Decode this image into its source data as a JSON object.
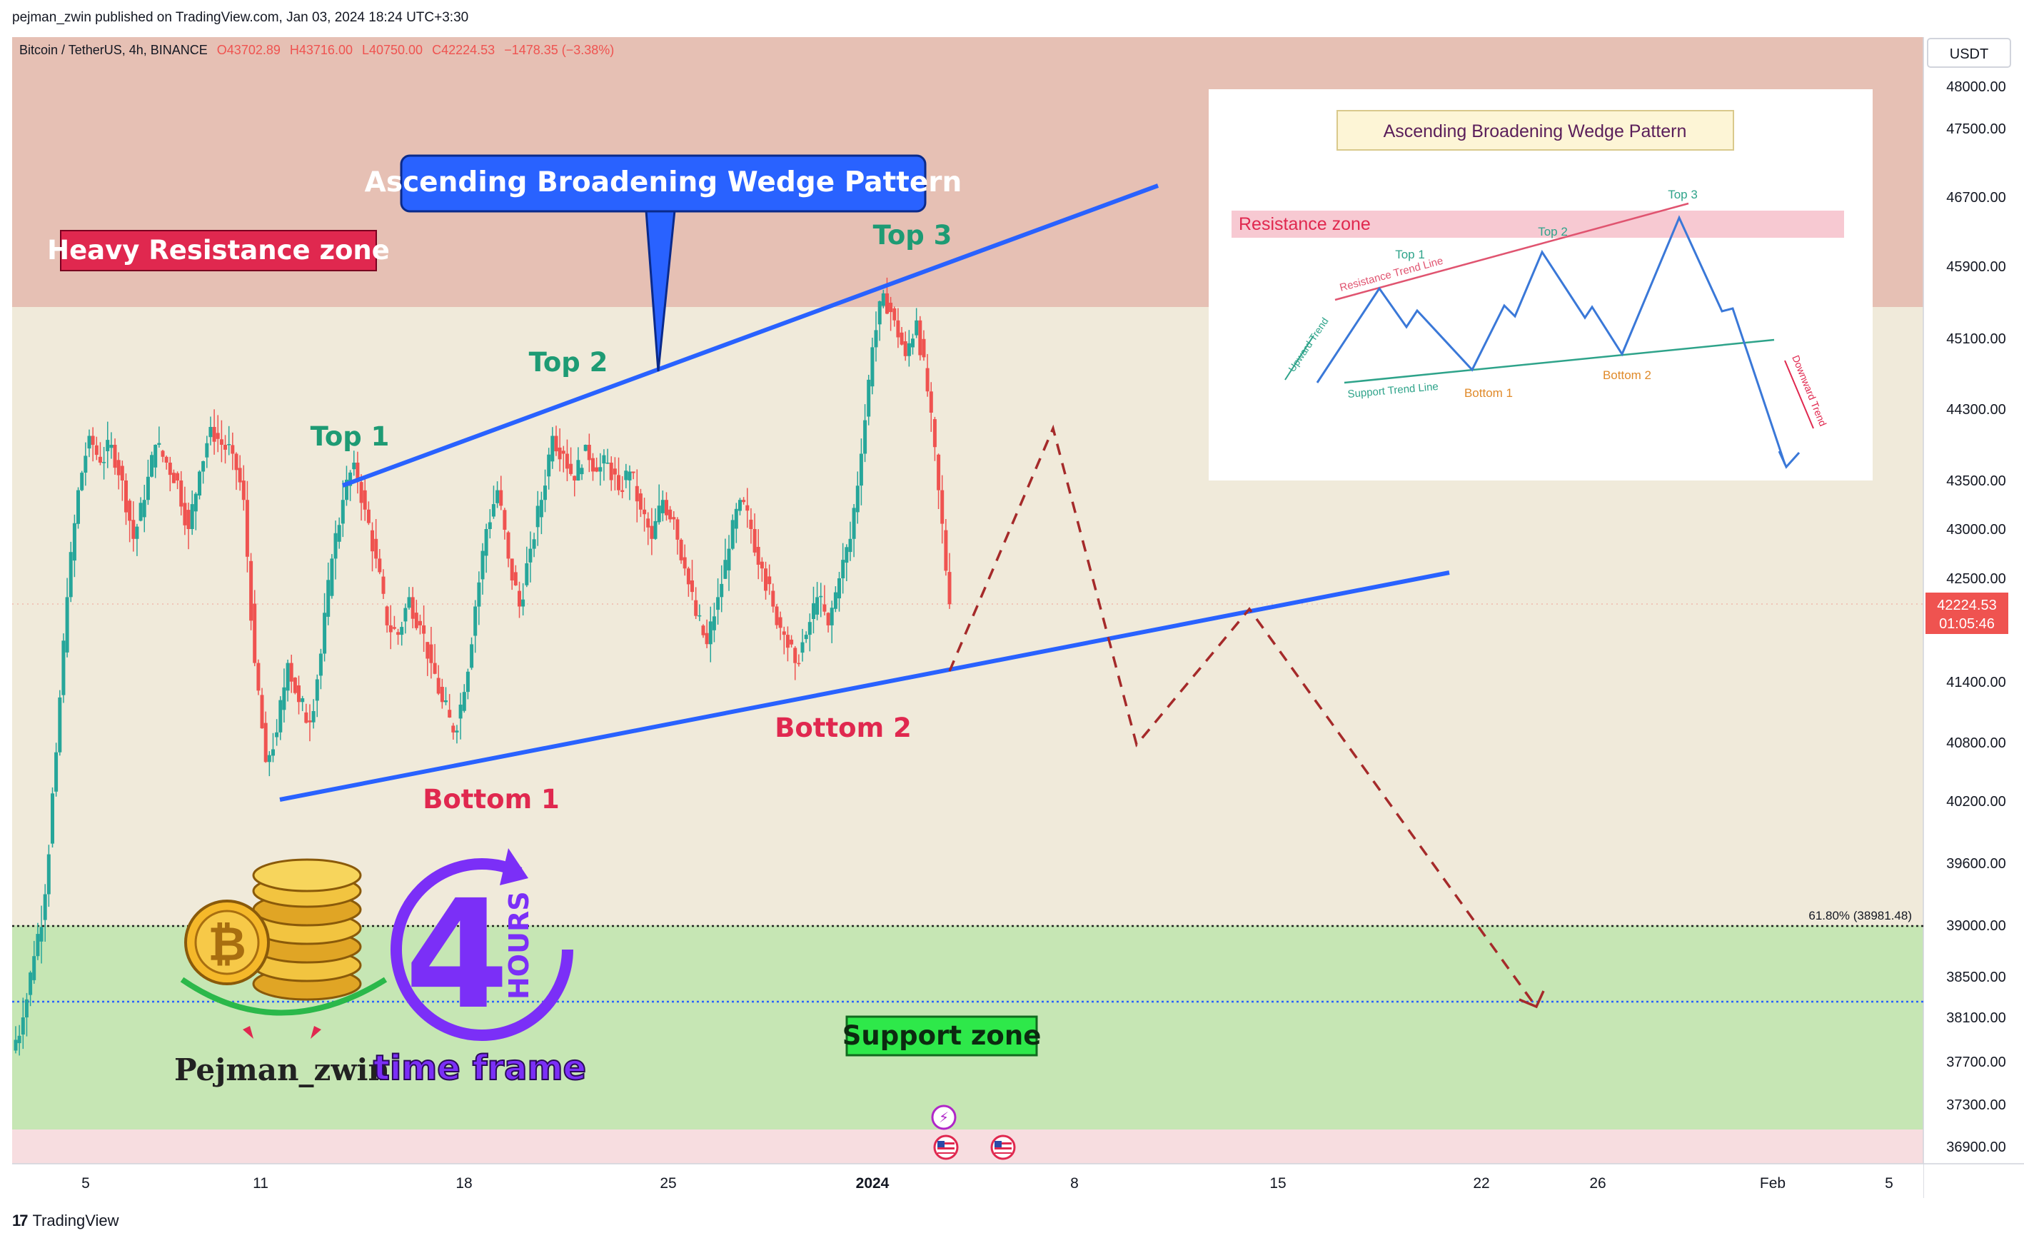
{
  "publish_line": "pejman_zwin published on TradingView.com, Jan 03, 2024 18:24 UTC+3:30",
  "symbol_line": {
    "name": "Bitcoin / TetherUS, 4h, BINANCE",
    "open": "O43702.89",
    "high": "H43716.00",
    "low": "L40750.00",
    "close": "C42224.53",
    "change": "−1478.35 (−3.38%)"
  },
  "currency": "USDT",
  "last_price": "42224.53",
  "countdown": "01:05:46",
  "fib_label": "61.80% (38981.48)",
  "footer_brand": "TradingView",
  "annotations": {
    "pattern_title": "Ascending Broadening Wedge Pattern",
    "resistance_zone": "Heavy Resistance zone",
    "support_zone": "Support zone",
    "top1": "Top 1",
    "top2": "Top 2",
    "top3": "Top 3",
    "bottom1": "Bottom 1",
    "bottom2": "Bottom 2"
  },
  "inset": {
    "title": "Ascending Broadening Wedge Pattern",
    "resistance_zone": "Resistance zone",
    "top1": "Top 1",
    "top2": "Top 2",
    "top3": "Top 3",
    "bottom1": "Bottom 1",
    "bottom2": "Bottom 2",
    "resistance_line": "Resistance Trend Line",
    "support_line": "Support Trend Line",
    "upward_trend": "Upward Trend",
    "downward_trend": "Downward Trend"
  },
  "logo": {
    "author": "Pejman_zwin",
    "four": "4",
    "hours": "HOURS",
    "time_frame": "time frame"
  },
  "colors": {
    "up": "#26a69a",
    "down": "#ef5350",
    "trendline": "#2962ff",
    "projection": "#b22222",
    "resistance_bg": "#e6c0b4",
    "support_bg": "#c6e6b4",
    "label_red": "#e0284f",
    "label_green": "#1e9b74"
  },
  "chart_data": {
    "type": "candlestick",
    "symbol": "Bitcoin / TetherUS",
    "interval": "4h",
    "exchange": "BINANCE",
    "y_axis_unit": "USDT",
    "ylim": [
      36700,
      48300
    ],
    "y_ticks": [
      "48000.00",
      "47500.00",
      "46700.00",
      "45900.00",
      "45100.00",
      "44300.00",
      "43500.00",
      "43000.00",
      "42500.00",
      "41400.00",
      "40800.00",
      "40200.00",
      "39600.00",
      "39000.00",
      "38500.00",
      "38100.00",
      "37700.00",
      "37300.00",
      "36900.00"
    ],
    "x_ticks": [
      "5",
      "11",
      "18",
      "25",
      "2024",
      "8",
      "15",
      "22",
      "26",
      "Feb",
      "5"
    ],
    "zones": {
      "resistance": [
        45600,
        48300
      ],
      "support": [
        37100,
        39000
      ]
    },
    "levels": {
      "fib_61_8": 38981.48,
      "support_dotted": 38220,
      "last": 42224.53
    },
    "trendlines": [
      {
        "name": "resistance",
        "from": [
          "2023-12-13",
          43500
        ],
        "to": [
          "2024-01-10",
          46800
        ]
      },
      {
        "name": "support",
        "from": [
          "2023-12-11",
          40250
        ],
        "to": [
          "2024-01-20",
          42550
        ]
      }
    ],
    "projection_path": [
      [
        "2024-01-03",
        41600
      ],
      [
        "2024-01-07",
        44100
      ],
      [
        "2024-01-10",
        40800
      ],
      [
        "2024-01-14",
        42200
      ],
      [
        "2024-01-23",
        38250
      ]
    ],
    "pattern_points": {
      "top1": [
        "2023-12-13",
        43600
      ],
      "top2": [
        "2023-12-21",
        44300
      ],
      "top3": [
        "2024-01-02",
        45800
      ],
      "bottom1": [
        "2023-12-18",
        40700
      ],
      "bottom2": [
        "2023-12-30",
        41300
      ]
    },
    "price_path": [
      [
        37800,
        38100
      ],
      [
        38100,
        38700
      ],
      [
        38700,
        39300
      ],
      [
        39300,
        40700
      ],
      [
        40700,
        42300
      ],
      [
        42300,
        43400
      ],
      [
        43400,
        44000
      ],
      [
        44000,
        43700
      ],
      [
        43700,
        43900
      ],
      [
        43900,
        43500
      ],
      [
        43500,
        42900
      ],
      [
        42900,
        43300
      ],
      [
        43300,
        43900
      ],
      [
        43900,
        43700
      ],
      [
        43700,
        43500
      ],
      [
        43500,
        43000
      ],
      [
        43000,
        43600
      ],
      [
        43600,
        44100
      ],
      [
        44100,
        43900
      ],
      [
        43900,
        43800
      ],
      [
        43800,
        43300
      ],
      [
        43300,
        41600
      ],
      [
        41600,
        40600
      ],
      [
        40600,
        40900
      ],
      [
        40900,
        41600
      ],
      [
        41600,
        41200
      ],
      [
        41200,
        41000
      ],
      [
        41000,
        41700
      ],
      [
        41700,
        42700
      ],
      [
        42700,
        43300
      ],
      [
        43300,
        43700
      ],
      [
        43700,
        43200
      ],
      [
        43200,
        42700
      ],
      [
        42700,
        42000
      ],
      [
        42000,
        41900
      ],
      [
        41900,
        42300
      ],
      [
        42300,
        42000
      ],
      [
        42000,
        41600
      ],
      [
        41600,
        41200
      ],
      [
        41200,
        40900
      ],
      [
        40900,
        41300
      ],
      [
        41300,
        42200
      ],
      [
        42200,
        43000
      ],
      [
        43000,
        43400
      ],
      [
        43400,
        42700
      ],
      [
        42700,
        42200
      ],
      [
        42200,
        42800
      ],
      [
        42800,
        43300
      ],
      [
        43300,
        44000
      ],
      [
        44000,
        43800
      ],
      [
        43800,
        43500
      ],
      [
        43500,
        43900
      ],
      [
        43900,
        43600
      ],
      [
        43600,
        43700
      ],
      [
        43700,
        43400
      ],
      [
        43400,
        43600
      ],
      [
        43600,
        43200
      ],
      [
        43200,
        42900
      ],
      [
        42900,
        43300
      ],
      [
        43300,
        43100
      ],
      [
        43100,
        42600
      ],
      [
        42600,
        42100
      ],
      [
        42100,
        41800
      ],
      [
        41800,
        42300
      ],
      [
        42300,
        42800
      ],
      [
        42800,
        43300
      ],
      [
        43300,
        43000
      ],
      [
        43000,
        42600
      ],
      [
        42600,
        42200
      ],
      [
        42200,
        41900
      ],
      [
        41900,
        41600
      ],
      [
        41600,
        41900
      ],
      [
        41900,
        42300
      ],
      [
        42300,
        42000
      ],
      [
        42000,
        42500
      ],
      [
        42500,
        42900
      ],
      [
        42900,
        43800
      ],
      [
        43800,
        45000
      ],
      [
        45000,
        45600
      ],
      [
        45600,
        45300
      ],
      [
        45300,
        44900
      ],
      [
        44900,
        45300
      ],
      [
        45300,
        44500
      ],
      [
        44500,
        43400
      ],
      [
        43400,
        42224
      ]
    ]
  }
}
